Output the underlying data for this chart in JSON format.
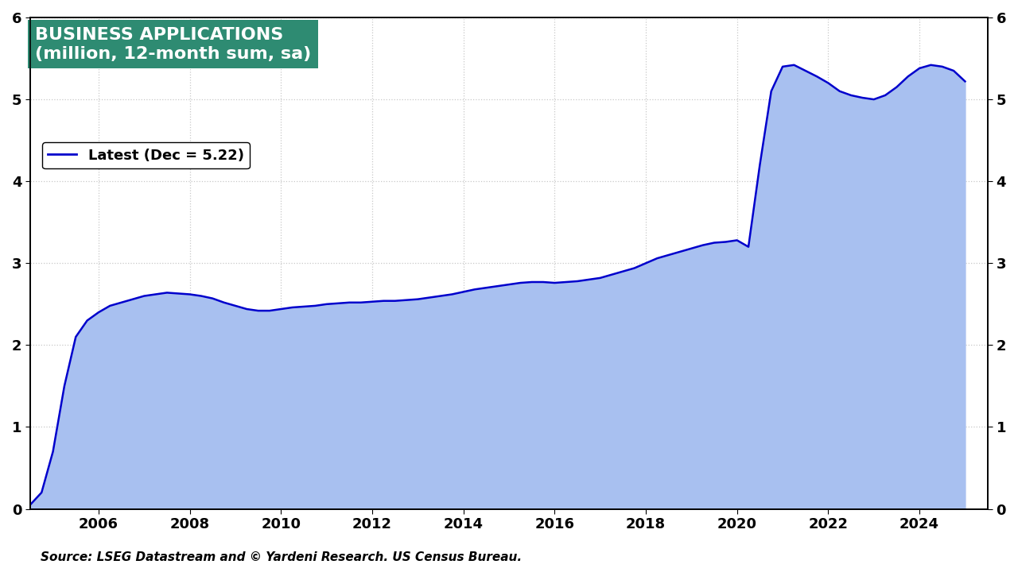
{
  "title_line1": "BUSINESS APPLICATIONS",
  "title_line2": "(million, 12-month sum, sa)",
  "legend_label": "Latest (Dec = 5.22)",
  "source_text": "Source: LSEG Datastream and © Yardeni Research. US Census Bureau.",
  "title_bg_color": "#2e8b72",
  "title_text_color": "#ffffff",
  "fill_color": "#a8c0f0",
  "line_color": "#0000cc",
  "background_color": "#ffffff",
  "grid_color": "#c8c8c8",
  "ylim": [
    0,
    6
  ],
  "yticks": [
    0,
    1,
    2,
    3,
    4,
    5,
    6
  ],
  "x_start_year": 2004.5,
  "x_end_year": 2025.5,
  "xtick_years": [
    2006,
    2008,
    2010,
    2012,
    2014,
    2016,
    2018,
    2020,
    2022,
    2024
  ],
  "data": {
    "dates": [
      2004.5,
      2004.75,
      2005.0,
      2005.25,
      2005.5,
      2005.75,
      2006.0,
      2006.25,
      2006.5,
      2006.75,
      2007.0,
      2007.25,
      2007.5,
      2007.75,
      2008.0,
      2008.25,
      2008.5,
      2008.75,
      2009.0,
      2009.25,
      2009.5,
      2009.75,
      2010.0,
      2010.25,
      2010.5,
      2010.75,
      2011.0,
      2011.25,
      2011.5,
      2011.75,
      2012.0,
      2012.25,
      2012.5,
      2012.75,
      2013.0,
      2013.25,
      2013.5,
      2013.75,
      2014.0,
      2014.25,
      2014.5,
      2014.75,
      2015.0,
      2015.25,
      2015.5,
      2015.75,
      2016.0,
      2016.25,
      2016.5,
      2016.75,
      2017.0,
      2017.25,
      2017.5,
      2017.75,
      2018.0,
      2018.25,
      2018.5,
      2018.75,
      2019.0,
      2019.25,
      2019.5,
      2019.75,
      2020.0,
      2020.25,
      2020.5,
      2020.75,
      2021.0,
      2021.25,
      2021.5,
      2021.75,
      2022.0,
      2022.25,
      2022.5,
      2022.75,
      2023.0,
      2023.25,
      2023.5,
      2023.75,
      2024.0,
      2024.25,
      2024.5,
      2024.75,
      2025.0
    ],
    "values": [
      0.05,
      0.2,
      0.7,
      1.5,
      2.1,
      2.3,
      2.4,
      2.48,
      2.52,
      2.56,
      2.6,
      2.62,
      2.64,
      2.63,
      2.62,
      2.6,
      2.57,
      2.52,
      2.48,
      2.44,
      2.42,
      2.42,
      2.44,
      2.46,
      2.47,
      2.48,
      2.5,
      2.51,
      2.52,
      2.52,
      2.53,
      2.54,
      2.54,
      2.55,
      2.56,
      2.58,
      2.6,
      2.62,
      2.65,
      2.68,
      2.7,
      2.72,
      2.74,
      2.76,
      2.77,
      2.77,
      2.76,
      2.77,
      2.78,
      2.8,
      2.82,
      2.86,
      2.9,
      2.94,
      3.0,
      3.06,
      3.1,
      3.14,
      3.18,
      3.22,
      3.25,
      3.26,
      3.28,
      3.2,
      4.2,
      5.1,
      5.4,
      5.42,
      5.35,
      5.28,
      5.2,
      5.1,
      5.05,
      5.02,
      5.0,
      5.05,
      5.15,
      5.28,
      5.38,
      5.42,
      5.4,
      5.35,
      5.22
    ]
  }
}
